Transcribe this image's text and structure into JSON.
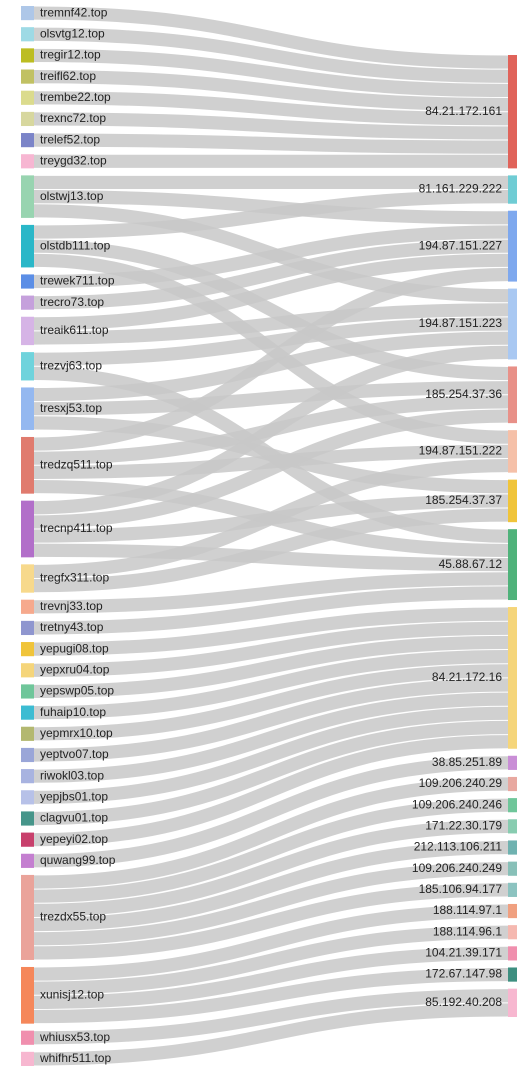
{
  "chart_data": {
    "type": "sankey",
    "title": "",
    "link_color": "#c8c8c8",
    "sources": [
      {
        "name": "tremnf42.top",
        "color": "#aec7e8"
      },
      {
        "name": "olsvtg12.top",
        "color": "#9edae5"
      },
      {
        "name": "tregir12.top",
        "color": "#bcbd22"
      },
      {
        "name": "treifl62.top",
        "color": "#c1c163"
      },
      {
        "name": "trembe22.top",
        "color": "#dbdb8d"
      },
      {
        "name": "trexnc72.top",
        "color": "#d7d79e"
      },
      {
        "name": "trelef52.top",
        "color": "#7b84c8"
      },
      {
        "name": "treygd32.top",
        "color": "#f7b6d2"
      },
      {
        "name": "olstwj13.top",
        "color": "#98d4b0"
      },
      {
        "name": "olstdb111.top",
        "color": "#2ab7c8"
      },
      {
        "name": "trewek711.top",
        "color": "#5b8ee6"
      },
      {
        "name": "trecro73.top",
        "color": "#c5a0dc"
      },
      {
        "name": "treaik611.top",
        "color": "#d6b4e6"
      },
      {
        "name": "trezvj63.top",
        "color": "#6fd3dc"
      },
      {
        "name": "tresxj53.top",
        "color": "#94b8f0"
      },
      {
        "name": "tredzq511.top",
        "color": "#e07b6e"
      },
      {
        "name": "trecnp411.top",
        "color": "#b26fc9"
      },
      {
        "name": "tregfx311.top",
        "color": "#f7d98c"
      },
      {
        "name": "trevnj33.top",
        "color": "#f6a98d"
      },
      {
        "name": "tretny43.top",
        "color": "#8f96cf"
      },
      {
        "name": "yepugi08.top",
        "color": "#f0c43a"
      },
      {
        "name": "yepxru04.top",
        "color": "#f5d57a"
      },
      {
        "name": "yepswp05.top",
        "color": "#6fc69a"
      },
      {
        "name": "fuhaip10.top",
        "color": "#3cbcd2"
      },
      {
        "name": "yepmrx10.top",
        "color": "#b3b870"
      },
      {
        "name": "yeptvo07.top",
        "color": "#9aa6d8"
      },
      {
        "name": "riwokl03.top",
        "color": "#a8b3e0"
      },
      {
        "name": "yepjbs01.top",
        "color": "#b7c1e8"
      },
      {
        "name": "clagvu01.top",
        "color": "#46958a"
      },
      {
        "name": "yepeyi02.top",
        "color": "#c8406c"
      },
      {
        "name": "quwang99.top",
        "color": "#c47fd0"
      },
      {
        "name": "trezdx55.top",
        "color": "#eaa39a"
      },
      {
        "name": "xunisj12.top",
        "color": "#f5875a"
      },
      {
        "name": "whiusx53.top",
        "color": "#f08fae"
      },
      {
        "name": "whifhr511.top",
        "color": "#f7b7d0"
      }
    ],
    "targets": [
      {
        "name": "84.21.172.161",
        "color": "#e0635a"
      },
      {
        "name": "81.161.229.222",
        "color": "#6fccd4"
      },
      {
        "name": "194.87.151.227",
        "color": "#7ea8ee"
      },
      {
        "name": "194.87.151.223",
        "color": "#a9c8f2"
      },
      {
        "name": "185.254.37.36",
        "color": "#e89088"
      },
      {
        "name": "194.87.151.222",
        "color": "#f5c0a8"
      },
      {
        "name": "185.254.37.37",
        "color": "#f0c43a"
      },
      {
        "name": "45.88.67.12",
        "color": "#4fb27a"
      },
      {
        "name": "84.21.172.16",
        "color": "#f5d57a"
      },
      {
        "name": "38.85.251.89",
        "color": "#c98ed6"
      },
      {
        "name": "109.206.240.29",
        "color": "#e8a8a0"
      },
      {
        "name": "109.206.240.246",
        "color": "#6fc69a"
      },
      {
        "name": "171.22.30.179",
        "color": "#88ccb0"
      },
      {
        "name": "212.113.106.211",
        "color": "#6fb2b0"
      },
      {
        "name": "109.206.240.249",
        "color": "#88c0b8"
      },
      {
        "name": "185.106.94.177",
        "color": "#8cc3c0"
      },
      {
        "name": "188.114.97.1",
        "color": "#f0a080"
      },
      {
        "name": "188.114.96.1",
        "color": "#f5b8b0"
      },
      {
        "name": "104.21.39.171",
        "color": "#f08fae"
      },
      {
        "name": "172.67.147.98",
        "color": "#3d8f80"
      },
      {
        "name": "85.192.40.208",
        "color": "#f7b7d0"
      }
    ],
    "links": [
      [
        "tremnf42.top",
        "84.21.172.161",
        1
      ],
      [
        "olsvtg12.top",
        "84.21.172.161",
        1
      ],
      [
        "tregir12.top",
        "84.21.172.161",
        1
      ],
      [
        "treifl62.top",
        "84.21.172.161",
        1
      ],
      [
        "trembe22.top",
        "84.21.172.161",
        1
      ],
      [
        "trexnc72.top",
        "84.21.172.161",
        1
      ],
      [
        "trelef52.top",
        "84.21.172.161",
        1
      ],
      [
        "treygd32.top",
        "84.21.172.161",
        1
      ],
      [
        "olstwj13.top",
        "81.161.229.222",
        1
      ],
      [
        "olstwj13.top",
        "194.87.151.227",
        1
      ],
      [
        "olstwj13.top",
        "194.87.151.223",
        1
      ],
      [
        "olstdb111.top",
        "81.161.229.222",
        1
      ],
      [
        "olstdb111.top",
        "185.254.37.36",
        1
      ],
      [
        "olstdb111.top",
        "194.87.151.222",
        1
      ],
      [
        "trewek711.top",
        "194.87.151.227",
        1
      ],
      [
        "trecro73.top",
        "194.87.151.227",
        1
      ],
      [
        "treaik611.top",
        "194.87.151.227",
        1
      ],
      [
        "treaik611.top",
        "194.87.151.223",
        1
      ],
      [
        "trezvj63.top",
        "194.87.151.223",
        1
      ],
      [
        "trezvj63.top",
        "45.88.67.12",
        1
      ],
      [
        "tresxj53.top",
        "194.87.151.223",
        1
      ],
      [
        "tresxj53.top",
        "185.254.37.36",
        1
      ],
      [
        "tresxj53.top",
        "185.254.37.37",
        1
      ],
      [
        "tredzq511.top",
        "194.87.151.227",
        1
      ],
      [
        "tredzq511.top",
        "185.254.37.36",
        1
      ],
      [
        "tredzq511.top",
        "194.87.151.222",
        1
      ],
      [
        "tredzq511.top",
        "45.88.67.12",
        1
      ],
      [
        "trecnp411.top",
        "194.87.151.223",
        1
      ],
      [
        "trecnp411.top",
        "185.254.37.36",
        1
      ],
      [
        "trecnp411.top",
        "185.254.37.37",
        1
      ],
      [
        "trecnp411.top",
        "45.88.67.12",
        1
      ],
      [
        "tregfx311.top",
        "194.87.151.222",
        1
      ],
      [
        "tregfx311.top",
        "185.254.37.37",
        1
      ],
      [
        "trevnj33.top",
        "45.88.67.12",
        1
      ],
      [
        "tretny43.top",
        "45.88.67.12",
        1
      ],
      [
        "yepugi08.top",
        "84.21.172.16",
        1
      ],
      [
        "yepxru04.top",
        "84.21.172.16",
        1
      ],
      [
        "yepswp05.top",
        "84.21.172.16",
        1
      ],
      [
        "fuhaip10.top",
        "84.21.172.16",
        1
      ],
      [
        "yepmrx10.top",
        "84.21.172.16",
        1
      ],
      [
        "yeptvo07.top",
        "84.21.172.16",
        1
      ],
      [
        "riwokl03.top",
        "84.21.172.16",
        1
      ],
      [
        "yepjbs01.top",
        "84.21.172.16",
        1
      ],
      [
        "clagvu01.top",
        "84.21.172.16",
        1
      ],
      [
        "yepeyi02.top",
        "84.21.172.16",
        1
      ],
      [
        "quwang99.top",
        "38.85.251.89",
        1
      ],
      [
        "trezdx55.top",
        "109.206.240.29",
        1
      ],
      [
        "trezdx55.top",
        "109.206.240.246",
        1
      ],
      [
        "trezdx55.top",
        "171.22.30.179",
        1
      ],
      [
        "trezdx55.top",
        "212.113.106.211",
        1
      ],
      [
        "trezdx55.top",
        "109.206.240.249",
        1
      ],
      [
        "trezdx55.top",
        "185.106.94.177",
        1
      ],
      [
        "xunisj12.top",
        "188.114.97.1",
        1
      ],
      [
        "xunisj12.top",
        "188.114.96.1",
        1
      ],
      [
        "xunisj12.top",
        "104.21.39.171",
        1
      ],
      [
        "xunisj12.top",
        "172.67.147.98",
        1
      ],
      [
        "whiusx53.top",
        "85.192.40.208",
        1
      ],
      [
        "whifhr511.top",
        "85.192.40.208",
        1
      ]
    ]
  }
}
